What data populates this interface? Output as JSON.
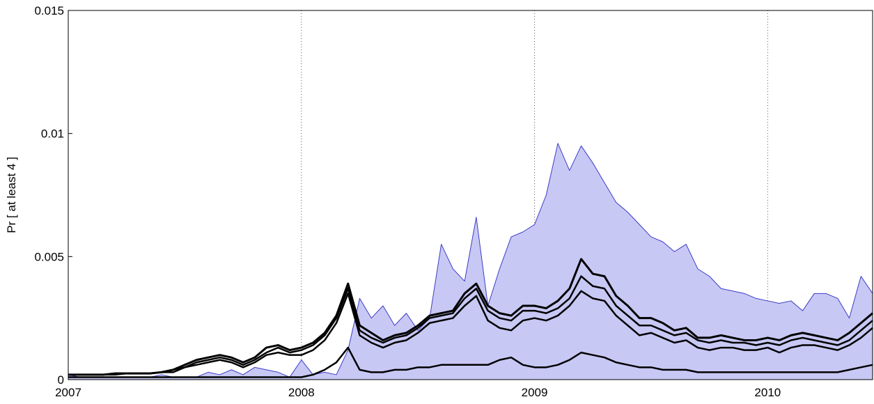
{
  "chart_data": {
    "type": "line",
    "ylabel": "Pr [ at least 4 ]",
    "xlim": [
      2007,
      2010.45
    ],
    "xticks": [
      2007,
      2008,
      2009,
      2010
    ],
    "ylim": [
      0,
      0.015
    ],
    "yticks": [
      0,
      0.005,
      0.01,
      0.015
    ],
    "xgrid": true,
    "x": [
      2007,
      2007.05,
      2007.1,
      2007.15,
      2007.2,
      2007.25,
      2007.3,
      2007.35,
      2007.4,
      2007.45,
      2007.5,
      2007.55,
      2007.6,
      2007.65,
      2007.7,
      2007.75,
      2007.8,
      2007.85,
      2007.9,
      2007.95,
      2008,
      2008.05,
      2008.1,
      2008.15,
      2008.2,
      2008.25,
      2008.3,
      2008.35,
      2008.4,
      2008.45,
      2008.5,
      2008.55,
      2008.6,
      2008.65,
      2008.7,
      2008.75,
      2008.8,
      2008.85,
      2008.9,
      2008.95,
      2009,
      2009.05,
      2009.1,
      2009.15,
      2009.2,
      2009.25,
      2009.3,
      2009.35,
      2009.4,
      2009.45,
      2009.5,
      2009.55,
      2009.6,
      2009.65,
      2009.7,
      2009.75,
      2009.8,
      2009.85,
      2009.9,
      2009.95,
      2010,
      2010.05,
      2010.1,
      2010.15,
      2010.2,
      2010.25,
      2010.3,
      2010.35,
      2010.4,
      2010.45
    ],
    "series": [
      {
        "color": "#3c3cc8",
        "fill": "#c8c8f5",
        "width": 1,
        "values": [
          0.0002,
          0.0001,
          0.0001,
          0.0001,
          0.0001,
          0.0001,
          0.0001,
          0.0001,
          0.0002,
          0.0001,
          0.0001,
          0.0001,
          0.0003,
          0.0002,
          0.0004,
          0.0002,
          0.0005,
          0.0004,
          0.0003,
          0.0001,
          0.0008,
          0.0002,
          0.0003,
          0.0002,
          0.0012,
          0.0033,
          0.0025,
          0.003,
          0.0022,
          0.0027,
          0.002,
          0.0025,
          0.0055,
          0.0045,
          0.004,
          0.0066,
          0.003,
          0.0045,
          0.0058,
          0.006,
          0.0063,
          0.0075,
          0.0096,
          0.0085,
          0.0095,
          0.0088,
          0.008,
          0.0072,
          0.0068,
          0.0063,
          0.0058,
          0.0056,
          0.0052,
          0.0055,
          0.0045,
          0.0042,
          0.0037,
          0.0036,
          0.0035,
          0.0033,
          0.0032,
          0.0031,
          0.0032,
          0.0028,
          0.0035,
          0.0035,
          0.0033,
          0.0025,
          0.0042,
          0.0035
        ]
      },
      {
        "color": "#000000",
        "width": 3,
        "values": [
          0.0002,
          0.0002,
          0.0002,
          0.0002,
          0.00025,
          0.00025,
          0.00025,
          0.00025,
          0.0003,
          0.0004,
          0.0006,
          0.0008,
          0.0009,
          0.001,
          0.0009,
          0.0007,
          0.0009,
          0.0013,
          0.0014,
          0.0012,
          0.0013,
          0.0015,
          0.0019,
          0.0026,
          0.0039,
          0.0022,
          0.0019,
          0.0016,
          0.0018,
          0.0019,
          0.0022,
          0.0026,
          0.0027,
          0.0028,
          0.0035,
          0.0039,
          0.003,
          0.0027,
          0.0026,
          0.003,
          0.003,
          0.0029,
          0.0032,
          0.0037,
          0.0049,
          0.0043,
          0.0042,
          0.0034,
          0.003,
          0.0025,
          0.0025,
          0.0023,
          0.002,
          0.0021,
          0.0017,
          0.0017,
          0.0018,
          0.0017,
          0.0016,
          0.0016,
          0.0017,
          0.0016,
          0.0018,
          0.0019,
          0.0018,
          0.0017,
          0.0016,
          0.0019,
          0.0023,
          0.0027
        ]
      },
      {
        "color": "#000000",
        "width": 2.5,
        "values": [
          0.0002,
          0.0002,
          0.0002,
          0.0002,
          0.00025,
          0.00025,
          0.00025,
          0.00025,
          0.0003,
          0.0004,
          0.0005,
          0.0007,
          0.0008,
          0.0009,
          0.0008,
          0.0006,
          0.0008,
          0.0011,
          0.0013,
          0.0011,
          0.0012,
          0.0014,
          0.0018,
          0.0025,
          0.0037,
          0.002,
          0.0017,
          0.0015,
          0.0017,
          0.0018,
          0.0021,
          0.0025,
          0.0026,
          0.0027,
          0.0033,
          0.0037,
          0.0028,
          0.0025,
          0.0024,
          0.0028,
          0.0028,
          0.0027,
          0.0029,
          0.0033,
          0.0042,
          0.0038,
          0.0037,
          0.003,
          0.0026,
          0.0022,
          0.0022,
          0.002,
          0.0018,
          0.0019,
          0.0016,
          0.0015,
          0.0016,
          0.0015,
          0.0015,
          0.0014,
          0.0015,
          0.0014,
          0.0016,
          0.0017,
          0.0016,
          0.0015,
          0.0014,
          0.0016,
          0.002,
          0.0024
        ]
      },
      {
        "color": "#000000",
        "width": 2.5,
        "values": [
          0.0002,
          0.0002,
          0.0002,
          0.0002,
          0.0002,
          0.00025,
          0.00025,
          0.00025,
          0.0003,
          0.0003,
          0.0005,
          0.0006,
          0.0007,
          0.0008,
          0.0007,
          0.0005,
          0.0007,
          0.001,
          0.0011,
          0.001,
          0.001,
          0.0012,
          0.0016,
          0.0023,
          0.0035,
          0.0018,
          0.0015,
          0.0013,
          0.0015,
          0.0016,
          0.0019,
          0.0023,
          0.0024,
          0.0025,
          0.003,
          0.0034,
          0.0024,
          0.0021,
          0.002,
          0.0024,
          0.0025,
          0.0024,
          0.0026,
          0.003,
          0.0036,
          0.0033,
          0.0032,
          0.0026,
          0.0022,
          0.0018,
          0.0019,
          0.0017,
          0.0015,
          0.0016,
          0.0013,
          0.0012,
          0.0013,
          0.0013,
          0.0012,
          0.0012,
          0.0013,
          0.0011,
          0.0013,
          0.0014,
          0.0014,
          0.0013,
          0.0012,
          0.0014,
          0.0017,
          0.0021
        ]
      },
      {
        "color": "#000000",
        "width": 2.5,
        "values": [
          0.0001,
          0.0001,
          0.0001,
          0.0001,
          0.0001,
          0.0001,
          0.0001,
          0.0001,
          0.0001,
          0.0001,
          0.0001,
          0.0001,
          0.0001,
          0.0001,
          0.0001,
          0.0001,
          0.0001,
          0.0001,
          0.0001,
          0.0001,
          0.0001,
          0.0002,
          0.0004,
          0.0007,
          0.0013,
          0.0004,
          0.0003,
          0.0003,
          0.0004,
          0.0004,
          0.0005,
          0.0005,
          0.0006,
          0.0006,
          0.0006,
          0.0006,
          0.0006,
          0.0008,
          0.0009,
          0.0006,
          0.0005,
          0.0005,
          0.0006,
          0.0008,
          0.0011,
          0.001,
          0.0009,
          0.0007,
          0.0006,
          0.0005,
          0.0005,
          0.0004,
          0.0004,
          0.0004,
          0.0003,
          0.0003,
          0.0003,
          0.0003,
          0.0003,
          0.0003,
          0.0003,
          0.0003,
          0.0003,
          0.0003,
          0.0003,
          0.0003,
          0.0003,
          0.0004,
          0.0005,
          0.0006
        ]
      }
    ]
  }
}
